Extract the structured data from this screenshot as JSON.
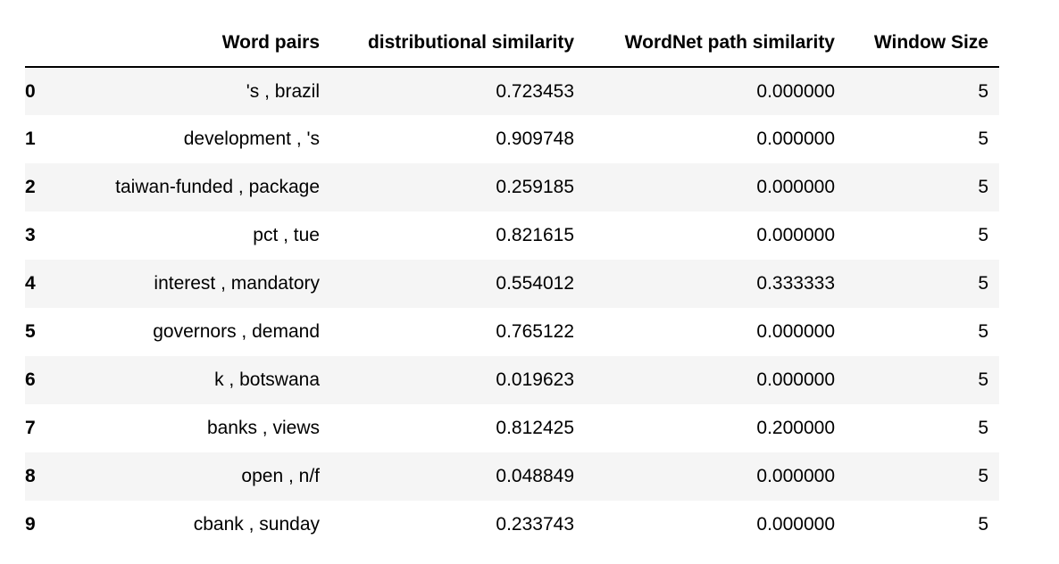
{
  "table": {
    "columns": [
      "Word pairs",
      "distributional similarity",
      "WordNet path similarity",
      "Window Size"
    ],
    "rows": [
      {
        "index": "0",
        "word_pairs": "'s , brazil",
        "distributional_similarity": "0.723453",
        "wordnet_path_similarity": "0.000000",
        "window_size": "5"
      },
      {
        "index": "1",
        "word_pairs": "development , 's",
        "distributional_similarity": "0.909748",
        "wordnet_path_similarity": "0.000000",
        "window_size": "5"
      },
      {
        "index": "2",
        "word_pairs": "taiwan-funded , package",
        "distributional_similarity": "0.259185",
        "wordnet_path_similarity": "0.000000",
        "window_size": "5"
      },
      {
        "index": "3",
        "word_pairs": "pct , tue",
        "distributional_similarity": "0.821615",
        "wordnet_path_similarity": "0.000000",
        "window_size": "5"
      },
      {
        "index": "4",
        "word_pairs": "interest , mandatory",
        "distributional_similarity": "0.554012",
        "wordnet_path_similarity": "0.333333",
        "window_size": "5"
      },
      {
        "index": "5",
        "word_pairs": "governors , demand",
        "distributional_similarity": "0.765122",
        "wordnet_path_similarity": "0.000000",
        "window_size": "5"
      },
      {
        "index": "6",
        "word_pairs": "k , botswana",
        "distributional_similarity": "0.019623",
        "wordnet_path_similarity": "0.000000",
        "window_size": "5"
      },
      {
        "index": "7",
        "word_pairs": "banks , views",
        "distributional_similarity": "0.812425",
        "wordnet_path_similarity": "0.200000",
        "window_size": "5"
      },
      {
        "index": "8",
        "word_pairs": "open , n/f",
        "distributional_similarity": "0.048849",
        "wordnet_path_similarity": "0.000000",
        "window_size": "5"
      },
      {
        "index": "9",
        "word_pairs": "cbank , sunday",
        "distributional_similarity": "0.233743",
        "wordnet_path_similarity": "0.000000",
        "window_size": "5"
      }
    ]
  },
  "colors": {
    "striped_row": "#f5f5f5",
    "header_rule": "#000000"
  }
}
